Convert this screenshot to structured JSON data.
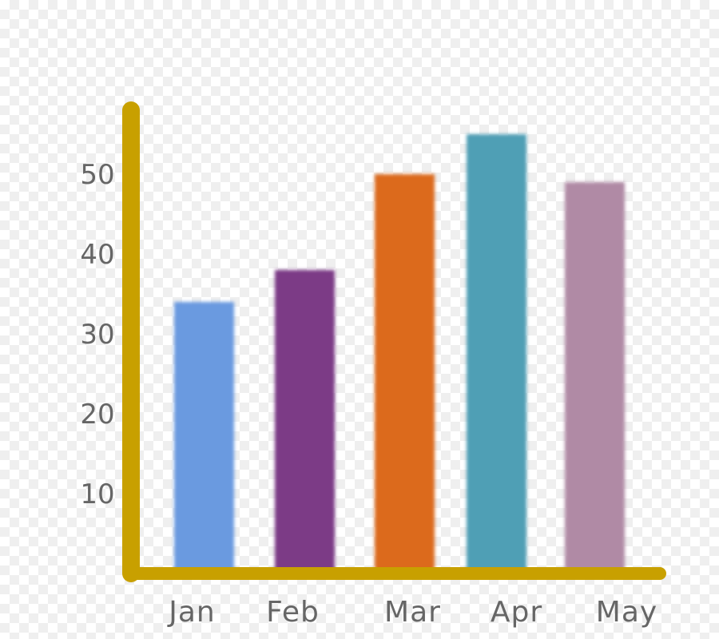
{
  "chart_data": {
    "type": "bar",
    "categories": [
      "Jan",
      "Feb",
      "Mar",
      "Apr",
      "May"
    ],
    "values": [
      34,
      38,
      50,
      55,
      49
    ],
    "colors": [
      "#6a9ae0",
      "#7b3a86",
      "#dc6a1c",
      "#4f9fb5",
      "#b08aa5"
    ],
    "axis_color": "#c8a000",
    "yticks": [
      10,
      20,
      30,
      40,
      50
    ],
    "ylim": [
      0,
      60
    ],
    "grid": false,
    "legend": "none",
    "title": "",
    "xlabel": "",
    "ylabel": ""
  }
}
